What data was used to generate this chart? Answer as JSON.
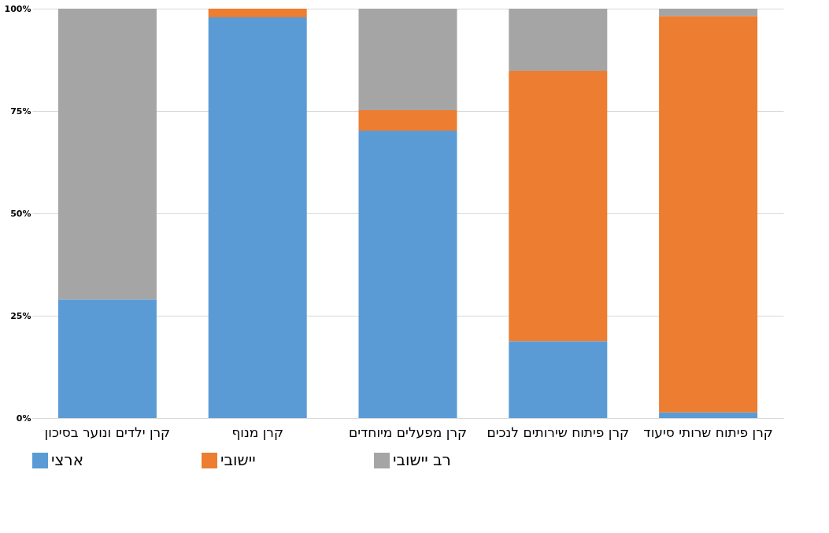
{
  "chart_data": {
    "type": "bar",
    "stacked": true,
    "categories": [
      "קרן ילדים ונוער בסיכון",
      "קרן מנוף",
      "קרן מפעלים מיוחדים",
      "קרן פיתוח שירותים לנכים",
      "קרן פיתוח שרותי סיעוד"
    ],
    "series": [
      {
        "name": "ארצי",
        "color": "#5b9bd5",
        "values": [
          29,
          97.9,
          70.2,
          18.8,
          1.4
        ]
      },
      {
        "name": "יישובי",
        "color": "#ed7d31",
        "values": [
          0,
          2.1,
          5.0,
          66.0,
          96.8
        ]
      },
      {
        "name": "רב יישובי",
        "color": "#a5a5a5",
        "values": [
          71,
          0,
          24.8,
          15.2,
          1.8
        ]
      }
    ],
    "ylim": [
      0,
      100
    ],
    "yticks": [
      {
        "value": 0,
        "label": "0%"
      },
      {
        "value": 25,
        "label": "25%"
      },
      {
        "value": 50,
        "label": "50%"
      },
      {
        "value": 75,
        "label": "75%"
      },
      {
        "value": 100,
        "label": "100%"
      }
    ],
    "grid": "y",
    "legend": "bottom"
  }
}
